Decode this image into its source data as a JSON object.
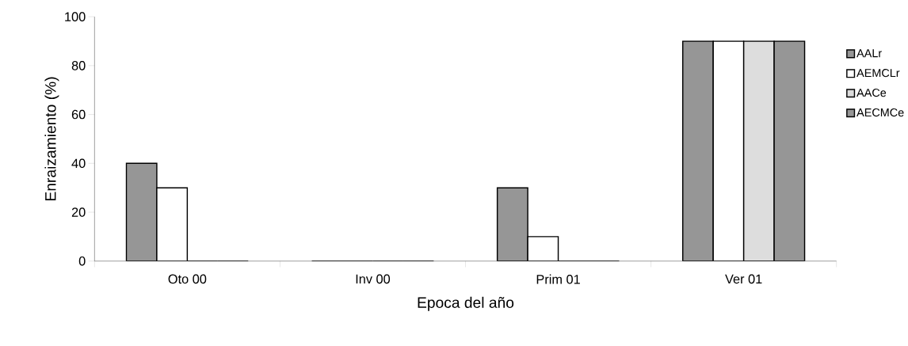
{
  "chart_data": {
    "type": "bar",
    "xlabel": "Epoca del año",
    "ylabel": "Enraizamiento (%)",
    "categories": [
      "Oto 00",
      "Inv 00",
      "Prim 01",
      "Ver 01"
    ],
    "series": [
      {
        "name": "AALr",
        "color": "#969696",
        "values": [
          40,
          0,
          30,
          90
        ]
      },
      {
        "name": "AEMCLr",
        "color": "#ffffff",
        "values": [
          30,
          0,
          10,
          90
        ]
      },
      {
        "name": "AACe",
        "color": "#dddddd",
        "values": [
          0,
          0,
          0,
          90
        ]
      },
      {
        "name": "AECMCe",
        "color": "#969696",
        "values": [
          0,
          0,
          0,
          90
        ]
      }
    ],
    "ylim": [
      0,
      100
    ],
    "yticks": [
      0,
      20,
      40,
      60,
      80,
      100
    ],
    "grid": false,
    "legend": "right"
  }
}
